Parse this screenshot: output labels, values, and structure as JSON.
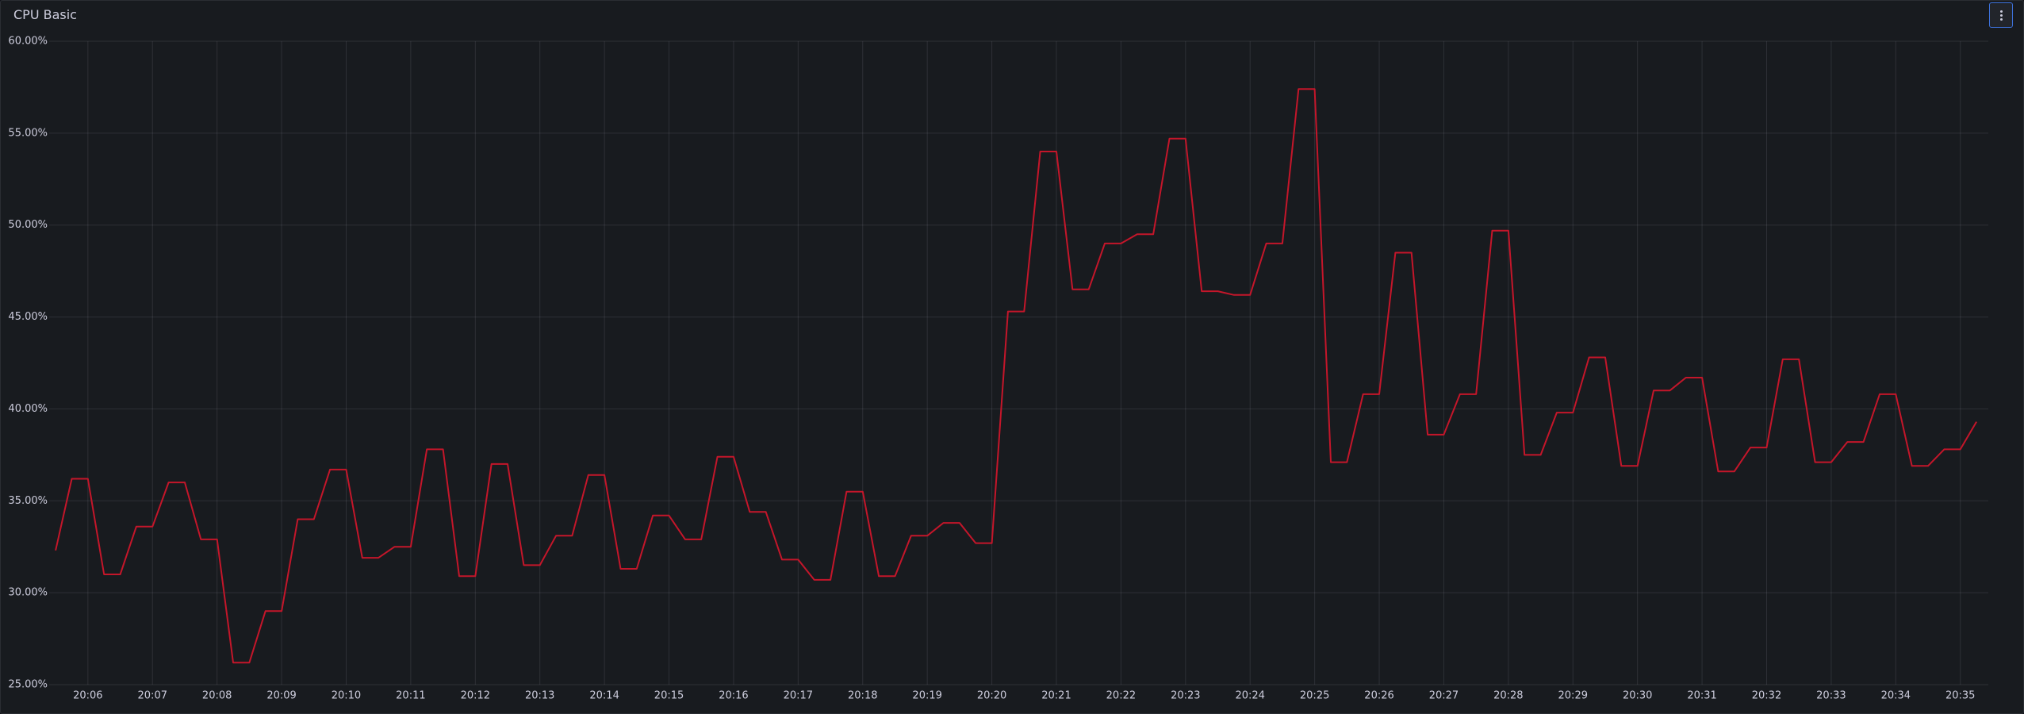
{
  "chart_data": {
    "type": "line",
    "title": "CPU Basic",
    "x": [
      "20:05:30",
      "20:05:45",
      "20:06:00",
      "20:06:15",
      "20:06:30",
      "20:06:45",
      "20:07:00",
      "20:07:15",
      "20:07:30",
      "20:07:45",
      "20:08:00",
      "20:08:15",
      "20:08:30",
      "20:08:45",
      "20:09:00",
      "20:09:15",
      "20:09:30",
      "20:09:45",
      "20:10:00",
      "20:10:15",
      "20:10:30",
      "20:10:45",
      "20:11:00",
      "20:11:15",
      "20:11:30",
      "20:11:45",
      "20:12:00",
      "20:12:15",
      "20:12:30",
      "20:12:45",
      "20:13:00",
      "20:13:15",
      "20:13:30",
      "20:13:45",
      "20:14:00",
      "20:14:15",
      "20:14:30",
      "20:14:45",
      "20:15:00",
      "20:15:15",
      "20:15:30",
      "20:15:45",
      "20:16:00",
      "20:16:15",
      "20:16:30",
      "20:16:45",
      "20:17:00",
      "20:17:15",
      "20:17:30",
      "20:17:45",
      "20:18:00",
      "20:18:15",
      "20:18:30",
      "20:18:45",
      "20:19:00",
      "20:19:15",
      "20:19:30",
      "20:19:45",
      "20:20:00",
      "20:20:15",
      "20:20:30",
      "20:20:45",
      "20:21:00",
      "20:21:15",
      "20:21:30",
      "20:21:45",
      "20:22:00",
      "20:22:15",
      "20:22:30",
      "20:22:45",
      "20:23:00",
      "20:23:15",
      "20:23:30",
      "20:23:45",
      "20:24:00",
      "20:24:15",
      "20:24:30",
      "20:24:45",
      "20:25:00",
      "20:25:15",
      "20:25:30",
      "20:25:45",
      "20:26:00",
      "20:26:15",
      "20:26:30",
      "20:26:45",
      "20:27:00",
      "20:27:15",
      "20:27:30",
      "20:27:45",
      "20:28:00",
      "20:28:15",
      "20:28:30",
      "20:28:45",
      "20:29:00",
      "20:29:15",
      "20:29:30",
      "20:29:45",
      "20:30:00",
      "20:30:15",
      "20:30:30",
      "20:30:45",
      "20:31:00",
      "20:31:15",
      "20:31:30",
      "20:31:45",
      "20:32:00",
      "20:32:15",
      "20:32:30",
      "20:32:45",
      "20:33:00",
      "20:33:15",
      "20:33:30",
      "20:33:45",
      "20:34:00",
      "20:34:15",
      "20:34:30",
      "20:34:45",
      "20:35:00",
      "20:35:15"
    ],
    "series": [
      {
        "color": "#c4162a",
        "values": [
          32.3,
          36.2,
          36.2,
          31.0,
          31.0,
          33.6,
          33.6,
          36.0,
          36.0,
          32.9,
          32.9,
          26.2,
          26.2,
          29.0,
          29.0,
          34.0,
          34.0,
          36.7,
          36.7,
          31.9,
          31.9,
          32.5,
          32.5,
          37.8,
          37.8,
          30.9,
          30.9,
          37.0,
          37.0,
          31.5,
          31.5,
          33.1,
          33.1,
          36.4,
          36.4,
          31.3,
          31.3,
          34.2,
          34.2,
          32.9,
          32.9,
          37.4,
          37.4,
          34.4,
          34.4,
          31.8,
          31.8,
          30.7,
          30.7,
          35.5,
          35.5,
          30.9,
          30.9,
          33.1,
          33.1,
          33.8,
          33.8,
          32.7,
          32.7,
          45.3,
          45.3,
          54.0,
          54.0,
          46.5,
          46.5,
          49.0,
          49.0,
          49.5,
          49.5,
          54.7,
          54.7,
          46.4,
          46.4,
          46.2,
          46.2,
          49.0,
          49.0,
          57.4,
          57.4,
          37.1,
          37.1,
          40.8,
          40.8,
          48.5,
          48.5,
          38.6,
          38.6,
          40.8,
          40.8,
          49.7,
          49.7,
          37.5,
          37.5,
          39.8,
          39.8,
          42.8,
          42.8,
          36.9,
          36.9,
          41.0,
          41.0,
          41.7,
          41.7,
          36.6,
          36.6,
          37.9,
          37.9,
          42.7,
          42.7,
          37.1,
          37.1,
          38.2,
          38.2,
          40.8,
          40.8,
          36.9,
          36.9,
          37.8,
          37.8,
          39.3
        ]
      }
    ],
    "xlim": [
      "20:05:24",
      "20:35:26"
    ],
    "xticks": [
      "20:06",
      "20:07",
      "20:08",
      "20:09",
      "20:10",
      "20:11",
      "20:12",
      "20:13",
      "20:14",
      "20:15",
      "20:16",
      "20:17",
      "20:18",
      "20:19",
      "20:20",
      "20:21",
      "20:22",
      "20:23",
      "20:24",
      "20:25",
      "20:26",
      "20:27",
      "20:28",
      "20:29",
      "20:30",
      "20:31",
      "20:32",
      "20:33",
      "20:34",
      "20:35"
    ],
    "ylim": [
      25,
      60
    ],
    "yticks": [
      {
        "value": 25,
        "label": "25.00%"
      },
      {
        "value": 30,
        "label": "30.00%"
      },
      {
        "value": 35,
        "label": "35.00%"
      },
      {
        "value": 40,
        "label": "40.00%"
      },
      {
        "value": 45,
        "label": "45.00%"
      },
      {
        "value": 50,
        "label": "50.00%"
      },
      {
        "value": 55,
        "label": "55.00%"
      },
      {
        "value": 60,
        "label": "60.00%"
      }
    ],
    "grid": true
  }
}
